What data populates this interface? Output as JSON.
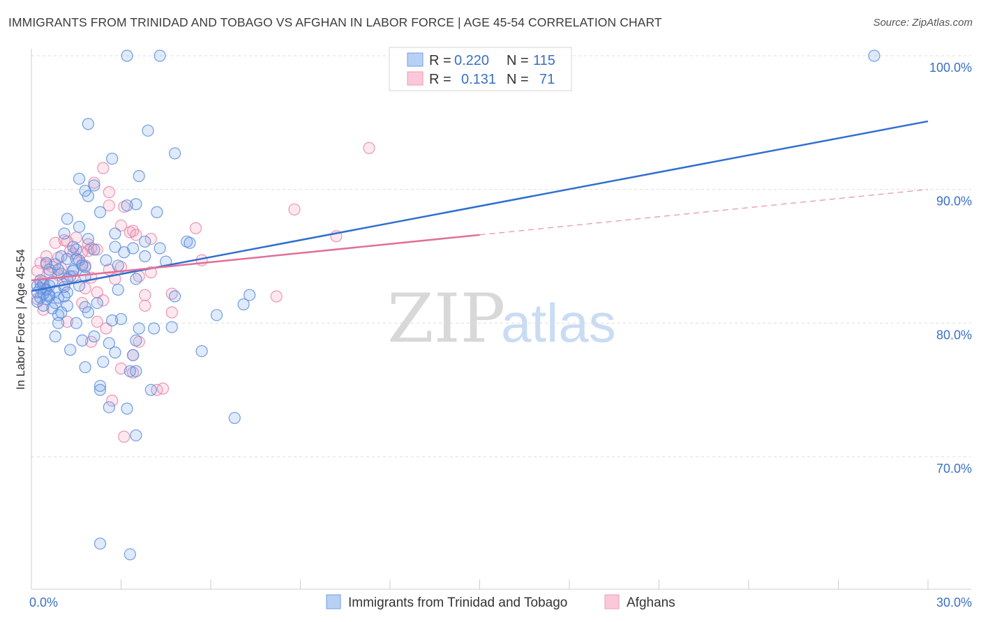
{
  "title": "IMMIGRANTS FROM TRINIDAD AND TOBAGO VS AFGHAN IN LABOR FORCE | AGE 45-54 CORRELATION CHART",
  "source": "Source: ZipAtlas.com",
  "watermark": {
    "zip": "ZIP",
    "atlas": "atlas"
  },
  "colors": {
    "blue": "#6f9fe8",
    "blue_line": "#2f6fcf",
    "pink": "#f19ab8",
    "pink_line": "#e0709a",
    "tick": "#3a6fc4",
    "grid": "#dddddd"
  },
  "legend": {
    "rows": [
      {
        "r_label": "R =",
        "r_value": "0.220",
        "n_label": "N =",
        "n_value": "115",
        "color": "blue"
      },
      {
        "r_label": "R =",
        "r_value": "0.131",
        "n_label": "N =",
        "n_value": "71",
        "color": "pink"
      }
    ]
  },
  "chart_data": {
    "type": "scatter",
    "title": "IMMIGRANTS FROM TRINIDAD AND TOBAGO VS AFGHAN IN LABOR FORCE | AGE 45-54 CORRELATION CHART",
    "xlabel": "",
    "ylabel": "In Labor Force | Age 45-54",
    "xlim": [
      0,
      30
    ],
    "ylim": [
      60,
      102
    ],
    "x_tick_labels": [
      {
        "value": 0,
        "label": "0.0%"
      },
      {
        "value": 30,
        "label": "30.0%"
      }
    ],
    "y_ticks": [
      {
        "value": 70,
        "label": "70.0%"
      },
      {
        "value": 80,
        "label": "80.0%"
      },
      {
        "value": 90,
        "label": "90.0%"
      },
      {
        "value": 100,
        "label": "100.0%"
      }
    ],
    "x_minor_ticks": [
      0,
      3,
      6,
      9,
      12,
      15,
      18,
      21,
      24,
      27,
      30
    ],
    "series": [
      {
        "name": "Immigrants from Trinidad and Tobago",
        "color": "blue",
        "trend": {
          "x0": 0,
          "y0": 82.4,
          "x1": 30,
          "y1": 95.1,
          "dashed_from": null
        },
        "points": [
          [
            3.2,
            100
          ],
          [
            4.3,
            100
          ],
          [
            28.2,
            100
          ],
          [
            1.9,
            94.9
          ],
          [
            3.9,
            94.4
          ],
          [
            4.8,
            92.7
          ],
          [
            2.7,
            92.3
          ],
          [
            3.6,
            91.0
          ],
          [
            1.6,
            90.8
          ],
          [
            2.1,
            90.3
          ],
          [
            1.8,
            89.9
          ],
          [
            1.9,
            89.5
          ],
          [
            3.5,
            88.9
          ],
          [
            3.2,
            88.8
          ],
          [
            2.3,
            88.3
          ],
          [
            4.2,
            88.3
          ],
          [
            1.2,
            87.8
          ],
          [
            1.6,
            87.2
          ],
          [
            1.1,
            86.7
          ],
          [
            2.8,
            86.7
          ],
          [
            1.9,
            86.3
          ],
          [
            3.8,
            86.1
          ],
          [
            5.2,
            86.1
          ],
          [
            5.3,
            86.0
          ],
          [
            1.4,
            85.7
          ],
          [
            2.8,
            85.7
          ],
          [
            3.4,
            85.6
          ],
          [
            4.3,
            85.6
          ],
          [
            2.1,
            85.5
          ],
          [
            1.5,
            85.5
          ],
          [
            3.1,
            85.3
          ],
          [
            1.0,
            85.0
          ],
          [
            1.2,
            84.8
          ],
          [
            1.6,
            84.7
          ],
          [
            4.5,
            84.6
          ],
          [
            0.5,
            84.5
          ],
          [
            0.8,
            84.4
          ],
          [
            1.7,
            84.3
          ],
          [
            2.9,
            84.3
          ],
          [
            1.8,
            84.2
          ],
          [
            1.4,
            84.0
          ],
          [
            0.6,
            84.0
          ],
          [
            1.0,
            83.7
          ],
          [
            1.3,
            83.5
          ],
          [
            1.8,
            83.5
          ],
          [
            0.3,
            83.2
          ],
          [
            1.2,
            83.3
          ],
          [
            3.5,
            83.3
          ],
          [
            0.7,
            83.1
          ],
          [
            0.4,
            82.9
          ],
          [
            0.2,
            82.8
          ],
          [
            0.6,
            82.8
          ],
          [
            1.6,
            82.8
          ],
          [
            1.1,
            82.7
          ],
          [
            0.3,
            82.6
          ],
          [
            0.5,
            82.5
          ],
          [
            0.8,
            82.4
          ],
          [
            2.9,
            82.5
          ],
          [
            0.2,
            82.3
          ],
          [
            0.4,
            82.2
          ],
          [
            0.6,
            82.1
          ],
          [
            7.3,
            82.1
          ],
          [
            4.8,
            82.0
          ],
          [
            0.3,
            81.9
          ],
          [
            0.9,
            81.9
          ],
          [
            0.5,
            81.8
          ],
          [
            0.2,
            81.6
          ],
          [
            0.8,
            81.5
          ],
          [
            7.1,
            81.4
          ],
          [
            1.2,
            81.3
          ],
          [
            1.8,
            81.2
          ],
          [
            0.7,
            81.1
          ],
          [
            1.0,
            80.8
          ],
          [
            1.9,
            80.8
          ],
          [
            0.9,
            80.6
          ],
          [
            6.2,
            80.6
          ],
          [
            3.0,
            80.3
          ],
          [
            2.7,
            80.2
          ],
          [
            0.9,
            80.0
          ],
          [
            1.5,
            80.0
          ],
          [
            3.6,
            79.6
          ],
          [
            4.1,
            79.6
          ],
          [
            4.7,
            79.7
          ],
          [
            0.8,
            79.0
          ],
          [
            2.1,
            79.0
          ],
          [
            1.7,
            78.7
          ],
          [
            2.6,
            78.5
          ],
          [
            3.5,
            78.7
          ],
          [
            1.3,
            78.0
          ],
          [
            5.7,
            77.9
          ],
          [
            2.8,
            77.8
          ],
          [
            3.4,
            77.6
          ],
          [
            2.4,
            77.1
          ],
          [
            1.8,
            76.7
          ],
          [
            3.3,
            76.4
          ],
          [
            3.5,
            76.4
          ],
          [
            2.3,
            75.3
          ],
          [
            2.3,
            75.0
          ],
          [
            4.0,
            75.0
          ],
          [
            2.6,
            73.7
          ],
          [
            3.2,
            73.6
          ],
          [
            6.8,
            72.9
          ],
          [
            3.5,
            71.6
          ],
          [
            2.3,
            63.5
          ],
          [
            3.3,
            62.7
          ],
          [
            1.2,
            82.3
          ],
          [
            0.4,
            81.3
          ],
          [
            1.4,
            83.9
          ],
          [
            2.5,
            84.7
          ],
          [
            0.9,
            84.0
          ],
          [
            1.1,
            82.0
          ],
          [
            3.8,
            85.0
          ],
          [
            2.2,
            81.5
          ],
          [
            0.6,
            82.0
          ],
          [
            1.5,
            84.8
          ]
        ]
      },
      {
        "name": "Afghans",
        "color": "pink",
        "trend": {
          "x0": 0,
          "y0": 83.2,
          "x1": 30,
          "y1": 90.0,
          "dashed_from": 15
        },
        "points": [
          [
            11.3,
            93.1
          ],
          [
            2.4,
            91.6
          ],
          [
            2.6,
            89.8
          ],
          [
            2.1,
            90.5
          ],
          [
            2.6,
            88.8
          ],
          [
            3.1,
            88.7
          ],
          [
            8.8,
            88.5
          ],
          [
            3.0,
            87.3
          ],
          [
            5.5,
            87.1
          ],
          [
            3.3,
            86.8
          ],
          [
            3.4,
            86.9
          ],
          [
            3.5,
            86.6
          ],
          [
            10.2,
            86.5
          ],
          [
            4.0,
            86.3
          ],
          [
            1.5,
            86.4
          ],
          [
            1.1,
            86.2
          ],
          [
            0.8,
            86.0
          ],
          [
            1.2,
            86.1
          ],
          [
            1.9,
            85.9
          ],
          [
            2.0,
            85.6
          ],
          [
            1.3,
            85.4
          ],
          [
            1.9,
            85.4
          ],
          [
            2.2,
            85.5
          ],
          [
            1.7,
            85.3
          ],
          [
            1.4,
            85.2
          ],
          [
            0.5,
            85.0
          ],
          [
            0.9,
            84.9
          ],
          [
            5.7,
            84.7
          ],
          [
            0.3,
            84.5
          ],
          [
            0.5,
            84.4
          ],
          [
            1.7,
            84.4
          ],
          [
            1.8,
            84.3
          ],
          [
            0.7,
            84.2
          ],
          [
            1.0,
            84.1
          ],
          [
            2.6,
            84.0
          ],
          [
            3.0,
            84.2
          ],
          [
            0.2,
            83.9
          ],
          [
            0.6,
            83.8
          ],
          [
            0.9,
            83.6
          ],
          [
            1.4,
            83.5
          ],
          [
            2.0,
            83.4
          ],
          [
            2.8,
            83.3
          ],
          [
            3.6,
            83.5
          ],
          [
            0.4,
            83.1
          ],
          [
            0.3,
            83.0
          ],
          [
            1.1,
            82.9
          ],
          [
            1.8,
            82.6
          ],
          [
            0.5,
            82.5
          ],
          [
            2.2,
            82.3
          ],
          [
            3.8,
            82.1
          ],
          [
            4.7,
            82.2
          ],
          [
            8.2,
            82.0
          ],
          [
            0.2,
            81.8
          ],
          [
            2.4,
            81.7
          ],
          [
            1.7,
            81.5
          ],
          [
            3.8,
            81.3
          ],
          [
            0.4,
            81.0
          ],
          [
            4.7,
            80.8
          ],
          [
            1.2,
            80.1
          ],
          [
            2.2,
            80.1
          ],
          [
            2.5,
            79.6
          ],
          [
            3.6,
            78.6
          ],
          [
            2.0,
            78.6
          ],
          [
            3.4,
            77.6
          ],
          [
            3.0,
            76.6
          ],
          [
            3.4,
            76.3
          ],
          [
            4.2,
            75.0
          ],
          [
            4.4,
            75.1
          ],
          [
            2.7,
            74.2
          ],
          [
            3.1,
            71.5
          ],
          [
            4.0,
            83.8
          ]
        ]
      }
    ]
  },
  "bottom_legend": {
    "items": [
      {
        "label": "Immigrants from Trinidad and Tobago",
        "color": "blue"
      },
      {
        "label": "Afghans",
        "color": "pink"
      }
    ]
  }
}
